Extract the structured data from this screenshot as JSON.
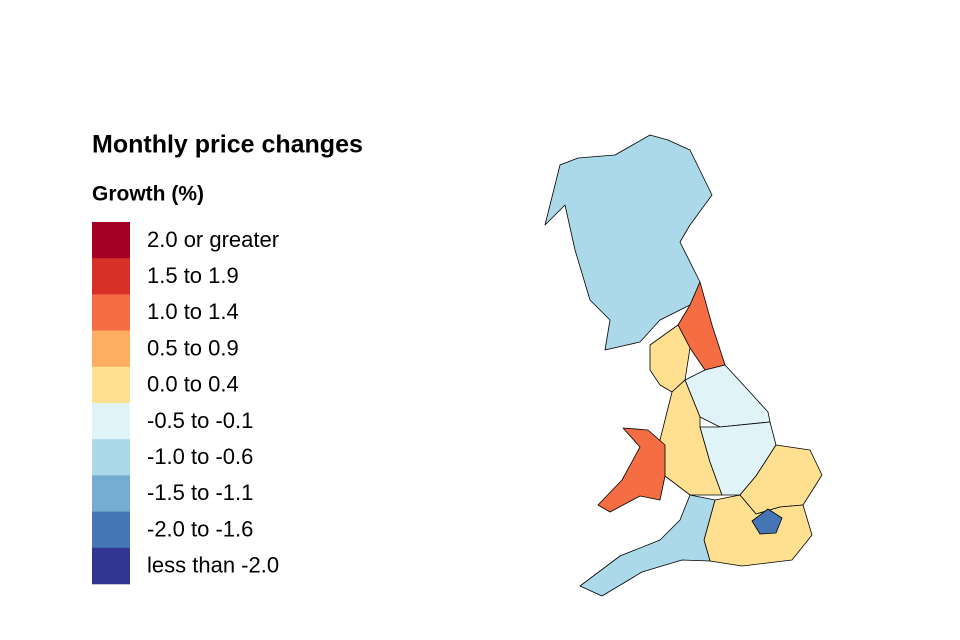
{
  "title": "Monthly price changes",
  "subtitle": "Growth (%)",
  "legend": [
    {
      "label": "2.0 or greater",
      "color": "#a50026"
    },
    {
      "label": "1.5 to 1.9",
      "color": "#d73027"
    },
    {
      "label": "1.0 to 1.4",
      "color": "#f46d43"
    },
    {
      "label": "0.5 to 0.9",
      "color": "#fdae61"
    },
    {
      "label": "0.0 to 0.4",
      "color": "#fee090"
    },
    {
      "label": "-0.5 to -0.1",
      "color": "#e0f3f8"
    },
    {
      "label": "-1.0 to -0.6",
      "color": "#abd9e9"
    },
    {
      "label": "-1.5 to -1.1",
      "color": "#74add1"
    },
    {
      "label": "-2.0 to -1.6",
      "color": "#4575b4"
    },
    {
      "label": "less than -2.0",
      "color": "#313695"
    }
  ],
  "regions": [
    {
      "bin": 6
    },
    {
      "bin": 2
    },
    {
      "bin": 4
    },
    {
      "bin": 5
    },
    {
      "bin": 4
    },
    {
      "bin": 5
    },
    {
      "bin": 2
    },
    {
      "bin": 4
    },
    {
      "bin": 4
    },
    {
      "bin": 6
    },
    {
      "bin": 8
    }
  ]
}
